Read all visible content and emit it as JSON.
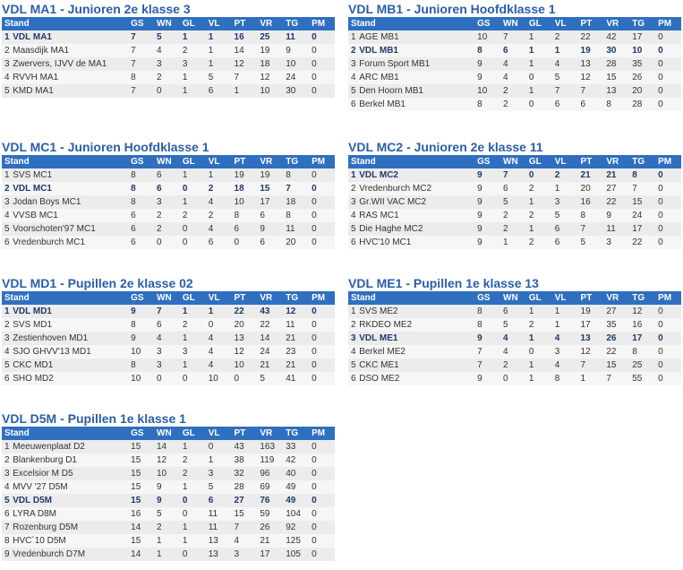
{
  "columns": {
    "stand": "Stand",
    "gs": "GS",
    "wn": "WN",
    "gl": "GL",
    "vl": "VL",
    "pt": "PT",
    "vr": "VR",
    "tg": "TG",
    "pm": "PM"
  },
  "tables": [
    {
      "title": "VDL MA1 - Junioren 2e klasse 3",
      "rows": [
        {
          "pos": "1",
          "team": "VDL MA1",
          "gs": "7",
          "wn": "5",
          "gl": "1",
          "vl": "1",
          "pt": "16",
          "vr": "25",
          "tg": "11",
          "pm": "0",
          "hl": true
        },
        {
          "pos": "2",
          "team": "Maasdijk MA1",
          "gs": "7",
          "wn": "4",
          "gl": "2",
          "vl": "1",
          "pt": "14",
          "vr": "19",
          "tg": "9",
          "pm": "0"
        },
        {
          "pos": "3",
          "team": "Zwervers, IJVV de MA1",
          "gs": "7",
          "wn": "3",
          "gl": "3",
          "vl": "1",
          "pt": "12",
          "vr": "18",
          "tg": "10",
          "pm": "0"
        },
        {
          "pos": "4",
          "team": "RVVH MA1",
          "gs": "8",
          "wn": "2",
          "gl": "1",
          "vl": "5",
          "pt": "7",
          "vr": "12",
          "tg": "24",
          "pm": "0"
        },
        {
          "pos": "5",
          "team": "KMD MA1",
          "gs": "7",
          "wn": "0",
          "gl": "1",
          "vl": "6",
          "pt": "1",
          "vr": "10",
          "tg": "30",
          "pm": "0"
        }
      ]
    },
    {
      "title": "VDL MB1 - Junioren Hoofdklasse 1",
      "rows": [
        {
          "pos": "1",
          "team": "AGE MB1",
          "gs": "10",
          "wn": "7",
          "gl": "1",
          "vl": "2",
          "pt": "22",
          "vr": "42",
          "tg": "17",
          "pm": "0"
        },
        {
          "pos": "2",
          "team": "VDL MB1",
          "gs": "8",
          "wn": "6",
          "gl": "1",
          "vl": "1",
          "pt": "19",
          "vr": "30",
          "tg": "10",
          "pm": "0",
          "hl": true
        },
        {
          "pos": "3",
          "team": "Forum Sport MB1",
          "gs": "9",
          "wn": "4",
          "gl": "1",
          "vl": "4",
          "pt": "13",
          "vr": "28",
          "tg": "35",
          "pm": "0"
        },
        {
          "pos": "4",
          "team": "ARC MB1",
          "gs": "9",
          "wn": "4",
          "gl": "0",
          "vl": "5",
          "pt": "12",
          "vr": "15",
          "tg": "26",
          "pm": "0"
        },
        {
          "pos": "5",
          "team": "Den Hoorn MB1",
          "gs": "10",
          "wn": "2",
          "gl": "1",
          "vl": "7",
          "pt": "7",
          "vr": "13",
          "tg": "20",
          "pm": "0"
        },
        {
          "pos": "6",
          "team": "Berkel MB1",
          "gs": "8",
          "wn": "2",
          "gl": "0",
          "vl": "6",
          "pt": "6",
          "vr": "8",
          "tg": "28",
          "pm": "0"
        }
      ]
    },
    {
      "title": "VDL MC1 - Junioren Hoofdklasse 1",
      "rows": [
        {
          "pos": "1",
          "team": "SVS MC1",
          "gs": "8",
          "wn": "6",
          "gl": "1",
          "vl": "1",
          "pt": "19",
          "vr": "19",
          "tg": "8",
          "pm": "0"
        },
        {
          "pos": "2",
          "team": "VDL MC1",
          "gs": "8",
          "wn": "6",
          "gl": "0",
          "vl": "2",
          "pt": "18",
          "vr": "15",
          "tg": "7",
          "pm": "0",
          "hl": true
        },
        {
          "pos": "3",
          "team": "Jodan Boys MC1",
          "gs": "8",
          "wn": "3",
          "gl": "1",
          "vl": "4",
          "pt": "10",
          "vr": "17",
          "tg": "18",
          "pm": "0"
        },
        {
          "pos": "4",
          "team": "VVSB MC1",
          "gs": "6",
          "wn": "2",
          "gl": "2",
          "vl": "2",
          "pt": "8",
          "vr": "6",
          "tg": "8",
          "pm": "0"
        },
        {
          "pos": "5",
          "team": "Voorschoten'97 MC1",
          "gs": "6",
          "wn": "2",
          "gl": "0",
          "vl": "4",
          "pt": "6",
          "vr": "9",
          "tg": "11",
          "pm": "0"
        },
        {
          "pos": "6",
          "team": "Vredenburch MC1",
          "gs": "6",
          "wn": "0",
          "gl": "0",
          "vl": "6",
          "pt": "0",
          "vr": "6",
          "tg": "20",
          "pm": "0"
        }
      ]
    },
    {
      "title": "VDL MC2 - Junioren 2e klasse 11",
      "rows": [
        {
          "pos": "1",
          "team": "VDL MC2",
          "gs": "9",
          "wn": "7",
          "gl": "0",
          "vl": "2",
          "pt": "21",
          "vr": "21",
          "tg": "8",
          "pm": "0",
          "hl": true
        },
        {
          "pos": "2",
          "team": "Vredenburch MC2",
          "gs": "9",
          "wn": "6",
          "gl": "2",
          "vl": "1",
          "pt": "20",
          "vr": "27",
          "tg": "7",
          "pm": "0"
        },
        {
          "pos": "3",
          "team": "Gr.WII VAC MC2",
          "gs": "9",
          "wn": "5",
          "gl": "1",
          "vl": "3",
          "pt": "16",
          "vr": "22",
          "tg": "15",
          "pm": "0"
        },
        {
          "pos": "4",
          "team": "RAS MC1",
          "gs": "9",
          "wn": "2",
          "gl": "2",
          "vl": "5",
          "pt": "8",
          "vr": "9",
          "tg": "24",
          "pm": "0"
        },
        {
          "pos": "5",
          "team": "Die Haghe MC2",
          "gs": "9",
          "wn": "2",
          "gl": "1",
          "vl": "6",
          "pt": "7",
          "vr": "11",
          "tg": "17",
          "pm": "0"
        },
        {
          "pos": "6",
          "team": "HVC'10 MC1",
          "gs": "9",
          "wn": "1",
          "gl": "2",
          "vl": "6",
          "pt": "5",
          "vr": "3",
          "tg": "22",
          "pm": "0"
        }
      ]
    },
    {
      "title": "VDL MD1 - Pupillen 2e klasse 02",
      "rows": [
        {
          "pos": "1",
          "team": "VDL MD1",
          "gs": "9",
          "wn": "7",
          "gl": "1",
          "vl": "1",
          "pt": "22",
          "vr": "43",
          "tg": "12",
          "pm": "0",
          "hl": true
        },
        {
          "pos": "2",
          "team": "SVS MD1",
          "gs": "8",
          "wn": "6",
          "gl": "2",
          "vl": "0",
          "pt": "20",
          "vr": "22",
          "tg": "11",
          "pm": "0"
        },
        {
          "pos": "3",
          "team": "Zestienhoven MD1",
          "gs": "9",
          "wn": "4",
          "gl": "1",
          "vl": "4",
          "pt": "13",
          "vr": "14",
          "tg": "21",
          "pm": "0"
        },
        {
          "pos": "4",
          "team": "SJO GHVV'13 MD1",
          "gs": "10",
          "wn": "3",
          "gl": "3",
          "vl": "4",
          "pt": "12",
          "vr": "24",
          "tg": "23",
          "pm": "0"
        },
        {
          "pos": "5",
          "team": "CKC MD1",
          "gs": "8",
          "wn": "3",
          "gl": "1",
          "vl": "4",
          "pt": "10",
          "vr": "21",
          "tg": "21",
          "pm": "0"
        },
        {
          "pos": "6",
          "team": "SHO MD2",
          "gs": "10",
          "wn": "0",
          "gl": "0",
          "vl": "10",
          "pt": "0",
          "vr": "5",
          "tg": "41",
          "pm": "0"
        }
      ]
    },
    {
      "title": "VDL ME1 - Pupillen 1e klasse 13",
      "rows": [
        {
          "pos": "1",
          "team": "SVS ME2",
          "gs": "8",
          "wn": "6",
          "gl": "1",
          "vl": "1",
          "pt": "19",
          "vr": "27",
          "tg": "12",
          "pm": "0"
        },
        {
          "pos": "2",
          "team": "RKDEO ME2",
          "gs": "8",
          "wn": "5",
          "gl": "2",
          "vl": "1",
          "pt": "17",
          "vr": "35",
          "tg": "16",
          "pm": "0"
        },
        {
          "pos": "3",
          "team": "VDL ME1",
          "gs": "9",
          "wn": "4",
          "gl": "1",
          "vl": "4",
          "pt": "13",
          "vr": "26",
          "tg": "17",
          "pm": "0",
          "hl": true
        },
        {
          "pos": "4",
          "team": "Berkel ME2",
          "gs": "7",
          "wn": "4",
          "gl": "0",
          "vl": "3",
          "pt": "12",
          "vr": "22",
          "tg": "8",
          "pm": "0"
        },
        {
          "pos": "5",
          "team": "CKC ME1",
          "gs": "7",
          "wn": "2",
          "gl": "1",
          "vl": "4",
          "pt": "7",
          "vr": "15",
          "tg": "25",
          "pm": "0"
        },
        {
          "pos": "6",
          "team": "DSO ME2",
          "gs": "9",
          "wn": "0",
          "gl": "1",
          "vl": "8",
          "pt": "1",
          "vr": "7",
          "tg": "55",
          "pm": "0"
        }
      ]
    },
    {
      "title": "VDL D5M - Pupillen 1e klasse 1",
      "rows": [
        {
          "pos": "1",
          "team": "Meeuwenplaat D2",
          "gs": "15",
          "wn": "14",
          "gl": "1",
          "vl": "0",
          "pt": "43",
          "vr": "163",
          "tg": "33",
          "pm": "0"
        },
        {
          "pos": "2",
          "team": "Blankenburg D1",
          "gs": "15",
          "wn": "12",
          "gl": "2",
          "vl": "1",
          "pt": "38",
          "vr": "119",
          "tg": "42",
          "pm": "0"
        },
        {
          "pos": "3",
          "team": "Excelsior M D5",
          "gs": "15",
          "wn": "10",
          "gl": "2",
          "vl": "3",
          "pt": "32",
          "vr": "96",
          "tg": "40",
          "pm": "0"
        },
        {
          "pos": "4",
          "team": "MVV '27 D5M",
          "gs": "15",
          "wn": "9",
          "gl": "1",
          "vl": "5",
          "pt": "28",
          "vr": "69",
          "tg": "49",
          "pm": "0"
        },
        {
          "pos": "5",
          "team": "VDL D5M",
          "gs": "15",
          "wn": "9",
          "gl": "0",
          "vl": "6",
          "pt": "27",
          "vr": "76",
          "tg": "49",
          "pm": "0",
          "hl": true
        },
        {
          "pos": "6",
          "team": "LYRA D8M",
          "gs": "16",
          "wn": "5",
          "gl": "0",
          "vl": "11",
          "pt": "15",
          "vr": "59",
          "tg": "104",
          "pm": "0"
        },
        {
          "pos": "7",
          "team": "Rozenburg D5M",
          "gs": "14",
          "wn": "2",
          "gl": "1",
          "vl": "11",
          "pt": "7",
          "vr": "26",
          "tg": "92",
          "pm": "0"
        },
        {
          "pos": "8",
          "team": "HVC´10 D5M",
          "gs": "15",
          "wn": "1",
          "gl": "1",
          "vl": "13",
          "pt": "4",
          "vr": "21",
          "tg": "125",
          "pm": "0"
        },
        {
          "pos": "9",
          "team": "Vredenburch D7M",
          "gs": "14",
          "wn": "1",
          "gl": "0",
          "vl": "13",
          "pt": "3",
          "vr": "17",
          "tg": "105",
          "pm": "0"
        }
      ]
    }
  ]
}
